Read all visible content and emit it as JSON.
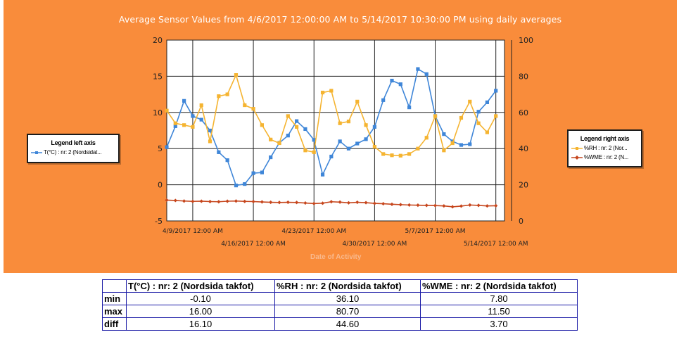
{
  "chart_data": {
    "type": "line",
    "title": "Average Sensor Values from 4/6/2017 12:00:00 AM to 5/14/2017 10:30:00 PM using daily averages",
    "xlabel": "Date of Activity",
    "x_tick_labels": [
      "4/9/2017 12:00 AM",
      "4/16/2017 12:00 AM",
      "4/23/2017 12:00 AM",
      "4/30/2017 12:00 AM",
      "5/7/2017 12:00 AM",
      "5/14/2017 12:00 AM"
    ],
    "x_tick_days": [
      3,
      10,
      17,
      24,
      31,
      38
    ],
    "x_start": "4/6/2017",
    "x_range_days": [
      0,
      39
    ],
    "y_left": {
      "ylim": [
        -5,
        20
      ],
      "ticks": [
        -5,
        0,
        5,
        10,
        15,
        20
      ]
    },
    "y_right": {
      "ylim": [
        0,
        100
      ],
      "ticks": [
        0,
        20,
        40,
        60,
        80,
        100
      ]
    },
    "grid": true,
    "legends": [
      {
        "title": "Legend left axis",
        "position": "left",
        "entries": [
          "T(°C) : nr: 2 (Nordsidat..."
        ]
      },
      {
        "title": "Legend right axis",
        "position": "right",
        "entries": [
          "%RH : nr: 2 (Nor...",
          "%WME : nr: 2 (N..."
        ]
      }
    ],
    "series": [
      {
        "name": "T(°C) : nr: 2 (Nordsida takfot)",
        "axis": "left",
        "color": "#3f86d8",
        "x": [
          0,
          1,
          2,
          3,
          4,
          5,
          6,
          7,
          8,
          9,
          10,
          11,
          12,
          13,
          14,
          15,
          16,
          17,
          18,
          19,
          20,
          21,
          22,
          23,
          24,
          25,
          26,
          27,
          28,
          29,
          30,
          31,
          32,
          33,
          34,
          35,
          36,
          37,
          38
        ],
        "values": [
          5.2,
          8.1,
          11.6,
          9.5,
          9.0,
          7.5,
          4.5,
          3.4,
          -0.1,
          0.1,
          1.6,
          1.7,
          3.8,
          5.8,
          6.8,
          8.8,
          7.7,
          6.2,
          1.4,
          3.9,
          6.0,
          5.0,
          5.7,
          6.3,
          8.0,
          11.7,
          14.4,
          13.9,
          10.7,
          16.0,
          15.3,
          9.5,
          7.0,
          6.0,
          5.5,
          5.6,
          10.1,
          11.4,
          13.0
        ]
      },
      {
        "name": "%RH : nr: 2 (Nordsida takfot)",
        "axis": "right",
        "color": "#f5b431",
        "x": [
          0,
          1,
          2,
          3,
          4,
          5,
          6,
          7,
          8,
          9,
          10,
          11,
          12,
          13,
          14,
          15,
          16,
          17,
          18,
          19,
          20,
          21,
          22,
          23,
          24,
          25,
          26,
          27,
          28,
          29,
          30,
          31,
          32,
          33,
          34,
          35,
          36,
          37,
          38
        ],
        "values": [
          61,
          54,
          53,
          52,
          64,
          44,
          69,
          70,
          80.7,
          64,
          62,
          53,
          45,
          43,
          58,
          52,
          39,
          38,
          71,
          72,
          54,
          55,
          66,
          53,
          41,
          37,
          36.3,
          36.1,
          37,
          40,
          46,
          58,
          39,
          43,
          57,
          66,
          54,
          49,
          58
        ]
      },
      {
        "name": "%WME : nr: 2 (Nordsida takfot)",
        "axis": "right",
        "color": "#c6461d",
        "x": [
          0,
          1,
          2,
          3,
          4,
          5,
          6,
          7,
          8,
          9,
          10,
          11,
          12,
          13,
          14,
          15,
          16,
          17,
          18,
          19,
          20,
          21,
          22,
          23,
          24,
          25,
          26,
          27,
          28,
          29,
          30,
          31,
          32,
          33,
          34,
          35,
          36,
          37,
          38
        ],
        "values": [
          11.5,
          11.3,
          11.0,
          10.8,
          10.9,
          10.7,
          10.6,
          10.9,
          11.0,
          10.8,
          10.7,
          10.5,
          10.3,
          10.2,
          10.3,
          10.2,
          9.9,
          9.6,
          9.8,
          10.6,
          10.4,
          10.0,
          10.3,
          10.1,
          9.7,
          9.5,
          9.2,
          9.0,
          8.8,
          8.7,
          8.6,
          8.5,
          8.3,
          7.8,
          8.2,
          8.8,
          8.6,
          8.3,
          8.4
        ]
      }
    ]
  },
  "stats_table": {
    "headers": [
      "",
      "T(°C) : nr: 2 (Nordsida takfot)",
      "%RH : nr: 2 (Nordsida takfot)",
      "%WME : nr: 2 (Nordsida takfot)"
    ],
    "rows": [
      {
        "label": "min",
        "values": [
          "-0.10",
          "36.10",
          "7.80"
        ]
      },
      {
        "label": "max",
        "values": [
          "16.00",
          "80.70",
          "11.50"
        ]
      },
      {
        "label": "diff",
        "values": [
          "16.10",
          "44.60",
          "3.70"
        ]
      }
    ]
  }
}
